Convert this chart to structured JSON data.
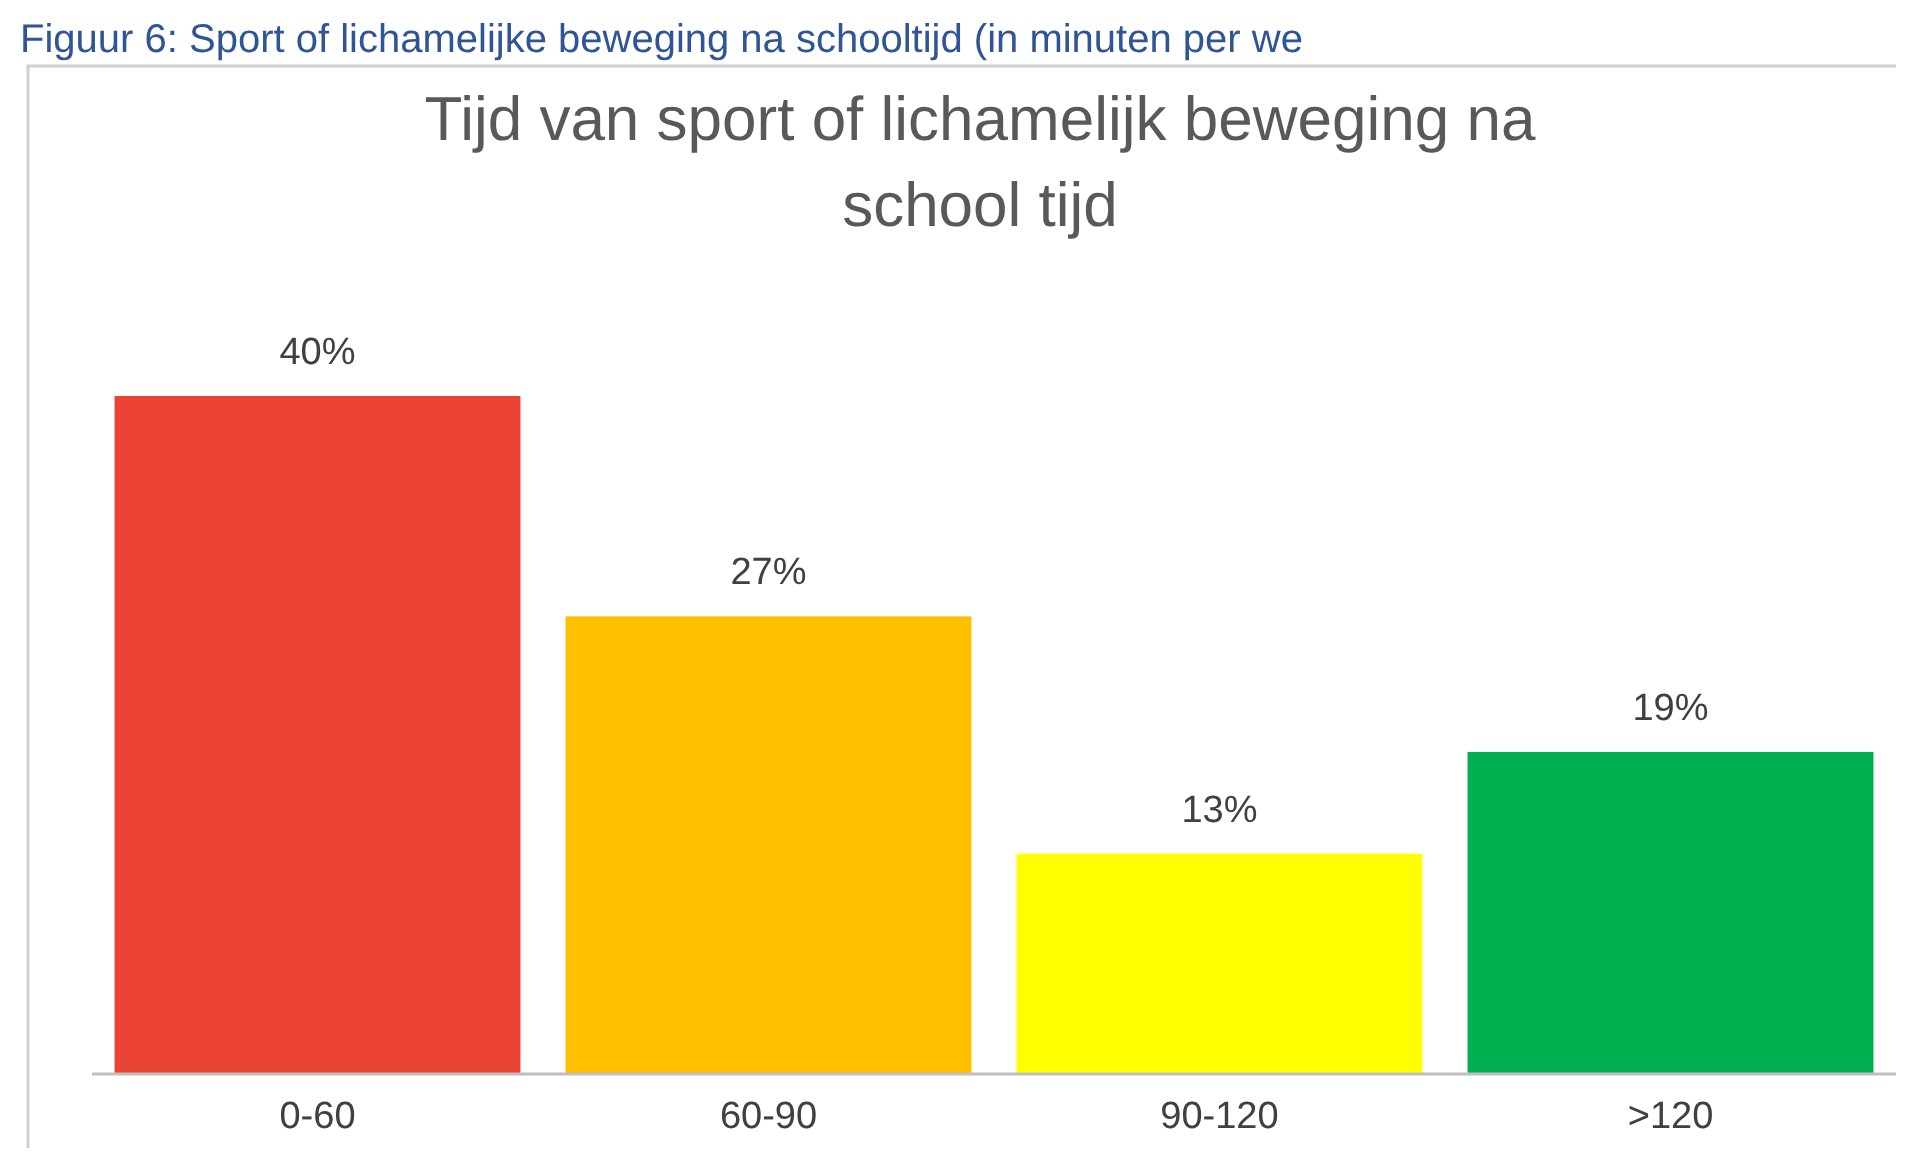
{
  "chart_data": {
    "type": "bar",
    "title": "Tijd van sport of lichamelijk beweging na\nschool tijd",
    "annotations": [
      "Figuur 6: Sport of lichamelijke beweging na schooltijd (in minuten per we"
    ],
    "categories": [
      "0-60",
      "60-90",
      "90-120",
      ">120"
    ],
    "values": [
      40,
      27,
      13,
      19
    ],
    "value_labels": [
      "40%",
      "27%",
      "13%",
      "19%"
    ],
    "colors": [
      "#ea4335",
      "#ffc000",
      "#ffff00",
      "#00b050"
    ]
  }
}
